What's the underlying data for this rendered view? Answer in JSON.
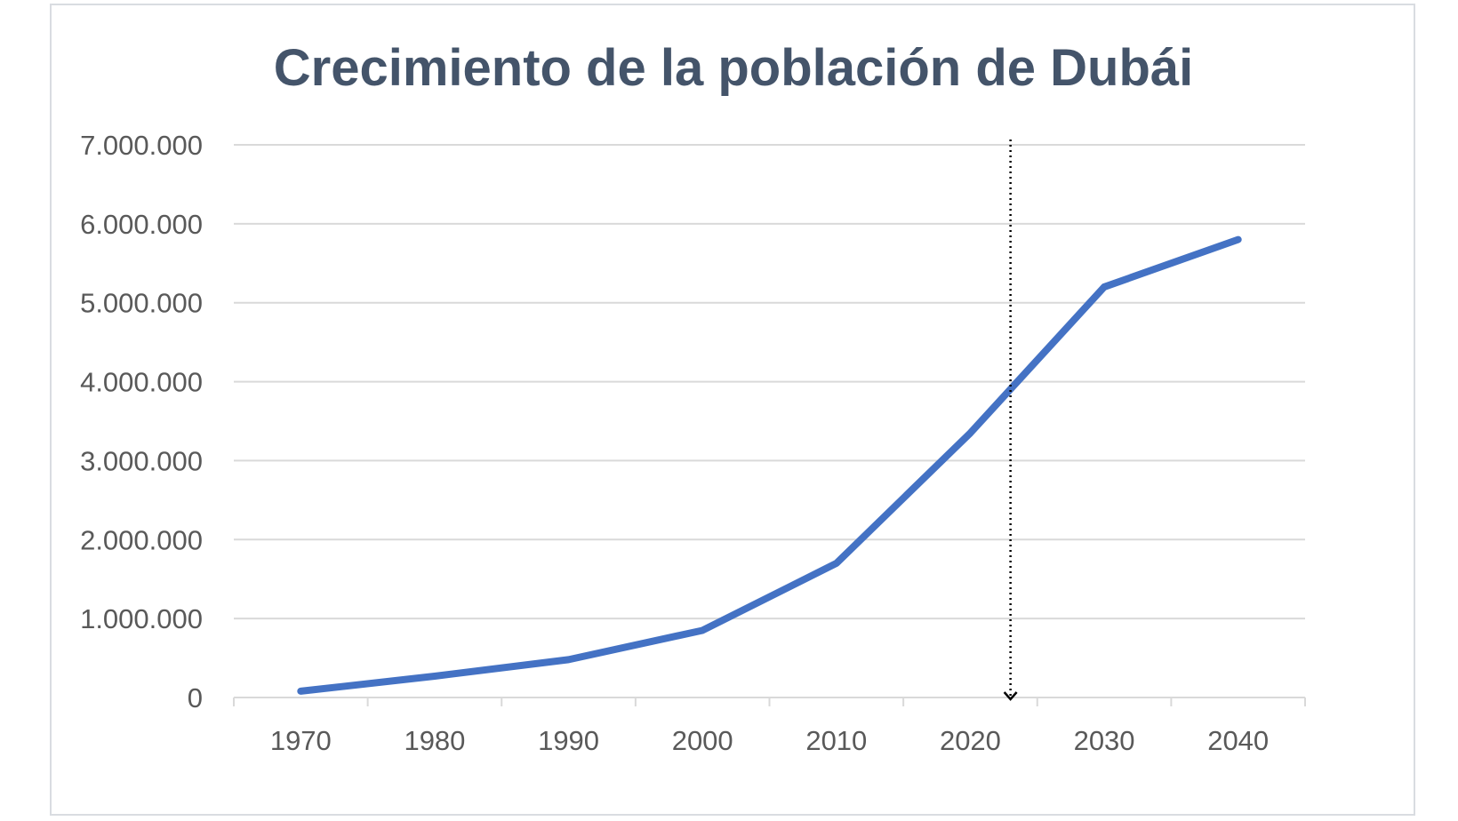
{
  "chart_data": {
    "type": "line",
    "title": "Crecimiento de la población de Dubái",
    "xlabel": "",
    "ylabel": "",
    "x": [
      1970,
      1980,
      1990,
      2000,
      2010,
      2020,
      2030,
      2040
    ],
    "categories": [
      "1970",
      "1980",
      "1990",
      "2000",
      "2010",
      "2020",
      "2030",
      "2040"
    ],
    "series": [
      {
        "values": [
          80000,
          270000,
          480000,
          850000,
          1700000,
          3350000,
          5200000,
          5800000
        ],
        "color": "#4472c4"
      }
    ],
    "ylim": [
      0,
      7000000
    ],
    "yticks": [
      0,
      1000000,
      2000000,
      3000000,
      4000000,
      5000000,
      6000000,
      7000000
    ],
    "ytick_labels": [
      "0",
      "1.000.000",
      "2.000.000",
      "3.000.000",
      "4.000.000",
      "5.000.000",
      "6.000.000",
      "7.000.000"
    ],
    "grid": true,
    "legend": "none",
    "annotations": [
      {
        "type": "vertical-dotted-arrow",
        "x": 2023,
        "direction": "down",
        "color": "#000000"
      }
    ]
  }
}
